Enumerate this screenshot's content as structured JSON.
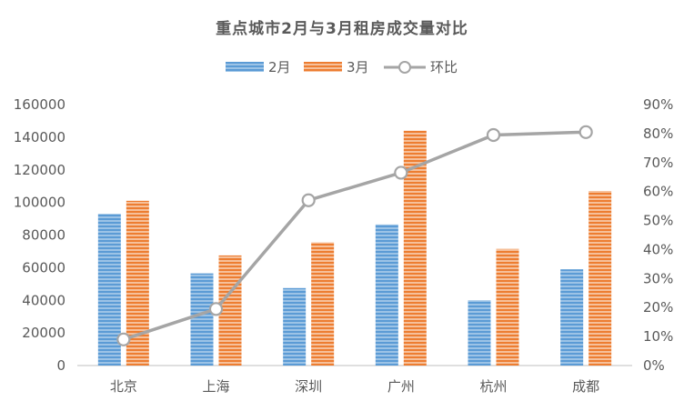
{
  "chart_data": {
    "type": "bar",
    "title": "重点城市2月与3月租房成交量对比",
    "categories": [
      "北京",
      "上海",
      "深圳",
      "广州",
      "杭州",
      "成都"
    ],
    "series": [
      {
        "name": "2月",
        "type": "bar",
        "axis": "left",
        "color": "#5b9bd5",
        "values": [
          93000,
          56500,
          47500,
          86500,
          40000,
          59000
        ]
      },
      {
        "name": "3月",
        "type": "bar",
        "axis": "left",
        "color": "#ed7d31",
        "values": [
          101000,
          67500,
          75500,
          144000,
          71500,
          107000
        ]
      },
      {
        "name": "环比",
        "type": "line",
        "axis": "right",
        "color": "#a5a5a5",
        "values": [
          0.09,
          0.195,
          0.57,
          0.665,
          0.795,
          0.805
        ]
      }
    ],
    "y_left": {
      "min": 0,
      "max": 160000,
      "ticks": [
        "0",
        "20000",
        "40000",
        "60000",
        "80000",
        "100000",
        "120000",
        "140000",
        "160000"
      ]
    },
    "y_right": {
      "min": 0,
      "max": 0.9,
      "ticks": [
        "0%",
        "10%",
        "20%",
        "30%",
        "40%",
        "50%",
        "60%",
        "70%",
        "80%",
        "90%"
      ]
    },
    "legend_position": "top",
    "grid": false
  }
}
